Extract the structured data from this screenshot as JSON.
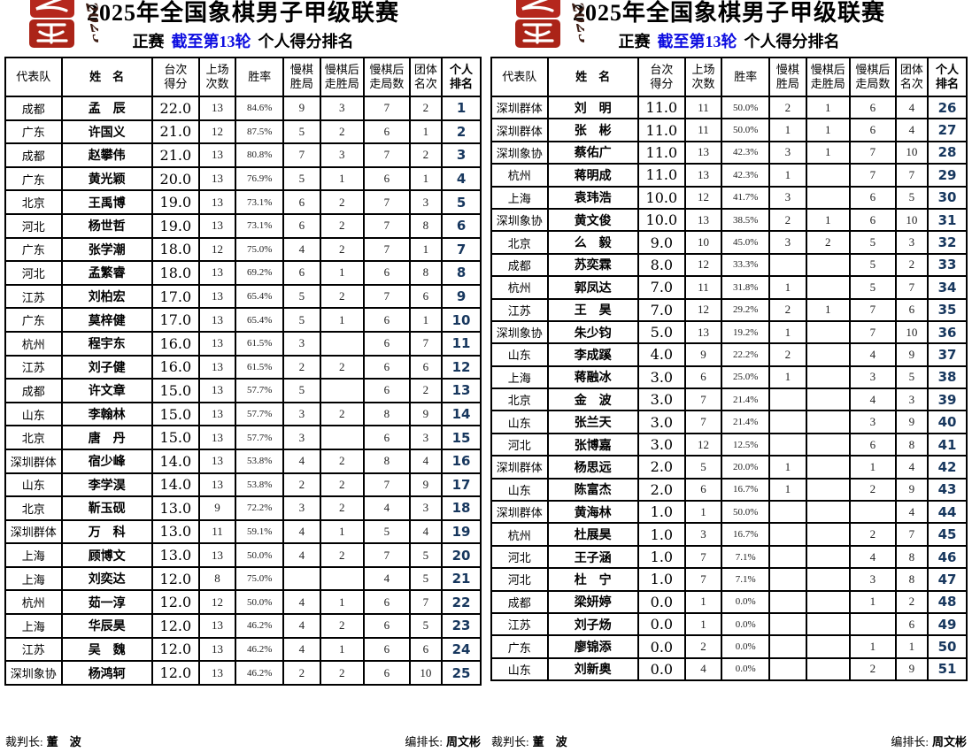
{
  "colors": {
    "round_highlight_blue": "#0d0de0",
    "rank_navy": "#17375e",
    "seal_red": "#b5271d",
    "border_black": "#000000"
  },
  "seal": {
    "script_text": "2025"
  },
  "panels": [
    {
      "title": "2025年全国象棋男子甲级联赛",
      "subtitle_prefix": "正赛",
      "subtitle_round": "截至第13轮",
      "subtitle_suffix": "个人得分排名",
      "columns": [
        "代表队",
        "姓　名",
        "台次\n得分",
        "上场\n次数",
        "胜率",
        "慢棋\n胜局",
        "慢棋后\n走胜局",
        "慢棋后\n走局数",
        "团体\n名次",
        "个人\n排名"
      ],
      "rows": [
        [
          "成都",
          "孟　辰",
          "22.0",
          "13",
          "84.6%",
          "9",
          "3",
          "7",
          "2",
          "1"
        ],
        [
          "广东",
          "许国义",
          "21.0",
          "12",
          "87.5%",
          "5",
          "2",
          "6",
          "1",
          "2"
        ],
        [
          "成都",
          "赵攀伟",
          "21.0",
          "13",
          "80.8%",
          "7",
          "3",
          "7",
          "2",
          "3"
        ],
        [
          "广东",
          "黄光颖",
          "20.0",
          "13",
          "76.9%",
          "5",
          "1",
          "6",
          "1",
          "4"
        ],
        [
          "北京",
          "王禹博",
          "19.0",
          "13",
          "73.1%",
          "6",
          "2",
          "7",
          "3",
          "5"
        ],
        [
          "河北",
          "杨世哲",
          "19.0",
          "13",
          "73.1%",
          "6",
          "2",
          "7",
          "8",
          "6"
        ],
        [
          "广东",
          "张学潮",
          "18.0",
          "12",
          "75.0%",
          "4",
          "2",
          "7",
          "1",
          "7"
        ],
        [
          "河北",
          "孟繁睿",
          "18.0",
          "13",
          "69.2%",
          "6",
          "1",
          "6",
          "8",
          "8"
        ],
        [
          "江苏",
          "刘柏宏",
          "17.0",
          "13",
          "65.4%",
          "5",
          "2",
          "7",
          "6",
          "9"
        ],
        [
          "广东",
          "莫梓健",
          "17.0",
          "13",
          "65.4%",
          "5",
          "1",
          "6",
          "1",
          "10"
        ],
        [
          "杭州",
          "程宇东",
          "16.0",
          "13",
          "61.5%",
          "3",
          "",
          "6",
          "7",
          "11"
        ],
        [
          "江苏",
          "刘子健",
          "16.0",
          "13",
          "61.5%",
          "2",
          "2",
          "6",
          "6",
          "12"
        ],
        [
          "成都",
          "许文章",
          "15.0",
          "13",
          "57.7%",
          "5",
          "",
          "6",
          "2",
          "13"
        ],
        [
          "山东",
          "李翰林",
          "15.0",
          "13",
          "57.7%",
          "3",
          "2",
          "8",
          "9",
          "14"
        ],
        [
          "北京",
          "唐　丹",
          "15.0",
          "13",
          "57.7%",
          "3",
          "",
          "6",
          "3",
          "15"
        ],
        [
          "深圳群体",
          "宿少峰",
          "14.0",
          "13",
          "53.8%",
          "4",
          "2",
          "8",
          "4",
          "16"
        ],
        [
          "山东",
          "李学淏",
          "14.0",
          "13",
          "53.8%",
          "2",
          "2",
          "7",
          "9",
          "17"
        ],
        [
          "北京",
          "靳玉砚",
          "13.0",
          "9",
          "72.2%",
          "3",
          "2",
          "4",
          "3",
          "18"
        ],
        [
          "深圳群体",
          "万　科",
          "13.0",
          "11",
          "59.1%",
          "4",
          "1",
          "5",
          "4",
          "19"
        ],
        [
          "上海",
          "顾博文",
          "13.0",
          "13",
          "50.0%",
          "4",
          "2",
          "7",
          "5",
          "20"
        ],
        [
          "上海",
          "刘奕达",
          "12.0",
          "8",
          "75.0%",
          "",
          "",
          "4",
          "5",
          "21"
        ],
        [
          "杭州",
          "茹一淳",
          "12.0",
          "12",
          "50.0%",
          "4",
          "1",
          "6",
          "7",
          "22"
        ],
        [
          "上海",
          "华辰昊",
          "12.0",
          "13",
          "46.2%",
          "4",
          "2",
          "6",
          "5",
          "23"
        ],
        [
          "江苏",
          "吴　魏",
          "12.0",
          "13",
          "46.2%",
          "4",
          "1",
          "6",
          "6",
          "24"
        ],
        [
          "深圳象协",
          "杨鸿轲",
          "12.0",
          "13",
          "46.2%",
          "2",
          "2",
          "6",
          "10",
          "25"
        ]
      ],
      "footer": {
        "referee_label": "裁判长:",
        "referee_name": "董　波",
        "arranger_label": "编排长:",
        "arranger_name": "周文彬"
      }
    },
    {
      "title": "2025年全国象棋男子甲级联赛",
      "subtitle_prefix": "正赛",
      "subtitle_round": "截至第13轮",
      "subtitle_suffix": "个人得分排名",
      "columns": [
        "代表队",
        "姓　名",
        "台次\n得分",
        "上场\n次数",
        "胜率",
        "慢棋\n胜局",
        "慢棋后\n走胜局",
        "慢棋后\n走局数",
        "团体\n名次",
        "个人\n排名"
      ],
      "rows": [
        [
          "深圳群体",
          "刘　明",
          "11.0",
          "11",
          "50.0%",
          "2",
          "1",
          "6",
          "4",
          "26"
        ],
        [
          "深圳群体",
          "张　彬",
          "11.0",
          "11",
          "50.0%",
          "1",
          "1",
          "6",
          "4",
          "27"
        ],
        [
          "深圳象协",
          "蔡佑广",
          "11.0",
          "13",
          "42.3%",
          "3",
          "1",
          "7",
          "10",
          "28"
        ],
        [
          "杭州",
          "蒋明成",
          "11.0",
          "13",
          "42.3%",
          "1",
          "",
          "7",
          "7",
          "29"
        ],
        [
          "上海",
          "袁玮浩",
          "10.0",
          "12",
          "41.7%",
          "3",
          "",
          "6",
          "5",
          "30"
        ],
        [
          "深圳象协",
          "黄文俊",
          "10.0",
          "13",
          "38.5%",
          "2",
          "1",
          "6",
          "10",
          "31"
        ],
        [
          "北京",
          "么　毅",
          "9.0",
          "10",
          "45.0%",
          "3",
          "2",
          "5",
          "3",
          "32"
        ],
        [
          "成都",
          "苏奕霖",
          "8.0",
          "12",
          "33.3%",
          "",
          "",
          "5",
          "2",
          "33"
        ],
        [
          "杭州",
          "郭凤达",
          "7.0",
          "11",
          "31.8%",
          "1",
          "",
          "5",
          "7",
          "34"
        ],
        [
          "江苏",
          "王　昊",
          "7.0",
          "12",
          "29.2%",
          "2",
          "1",
          "7",
          "6",
          "35"
        ],
        [
          "深圳象协",
          "朱少钧",
          "5.0",
          "13",
          "19.2%",
          "1",
          "",
          "7",
          "10",
          "36"
        ],
        [
          "山东",
          "李成蹊",
          "4.0",
          "9",
          "22.2%",
          "2",
          "",
          "4",
          "9",
          "37"
        ],
        [
          "上海",
          "蒋融冰",
          "3.0",
          "6",
          "25.0%",
          "1",
          "",
          "3",
          "5",
          "38"
        ],
        [
          "北京",
          "金　波",
          "3.0",
          "7",
          "21.4%",
          "",
          "",
          "4",
          "3",
          "39"
        ],
        [
          "山东",
          "张兰天",
          "3.0",
          "7",
          "21.4%",
          "",
          "",
          "3",
          "9",
          "40"
        ],
        [
          "河北",
          "张博嘉",
          "3.0",
          "12",
          "12.5%",
          "",
          "",
          "6",
          "8",
          "41"
        ],
        [
          "深圳群体",
          "杨思远",
          "2.0",
          "5",
          "20.0%",
          "1",
          "",
          "1",
          "4",
          "42"
        ],
        [
          "山东",
          "陈富杰",
          "2.0",
          "6",
          "16.7%",
          "1",
          "",
          "2",
          "9",
          "43"
        ],
        [
          "深圳群体",
          "黄海林",
          "1.0",
          "1",
          "50.0%",
          "",
          "",
          "",
          "4",
          "44"
        ],
        [
          "杭州",
          "杜展昊",
          "1.0",
          "3",
          "16.7%",
          "",
          "",
          "2",
          "7",
          "45"
        ],
        [
          "河北",
          "王子涵",
          "1.0",
          "7",
          "7.1%",
          "",
          "",
          "4",
          "8",
          "46"
        ],
        [
          "河北",
          "杜　宁",
          "1.0",
          "7",
          "7.1%",
          "",
          "",
          "3",
          "8",
          "47"
        ],
        [
          "成都",
          "梁妍婷",
          "0.0",
          "1",
          "0.0%",
          "",
          "",
          "1",
          "2",
          "48"
        ],
        [
          "江苏",
          "刘子炀",
          "0.0",
          "1",
          "0.0%",
          "",
          "",
          "",
          "6",
          "49"
        ],
        [
          "广东",
          "廖锦添",
          "0.0",
          "2",
          "0.0%",
          "",
          "",
          "1",
          "1",
          "50"
        ],
        [
          "山东",
          "刘新奥",
          "0.0",
          "4",
          "0.0%",
          "",
          "",
          "2",
          "9",
          "51"
        ]
      ],
      "footer": {
        "referee_label": "裁判长:",
        "referee_name": "董　波",
        "arranger_label": "编排长:",
        "arranger_name": "周文彬"
      }
    }
  ]
}
